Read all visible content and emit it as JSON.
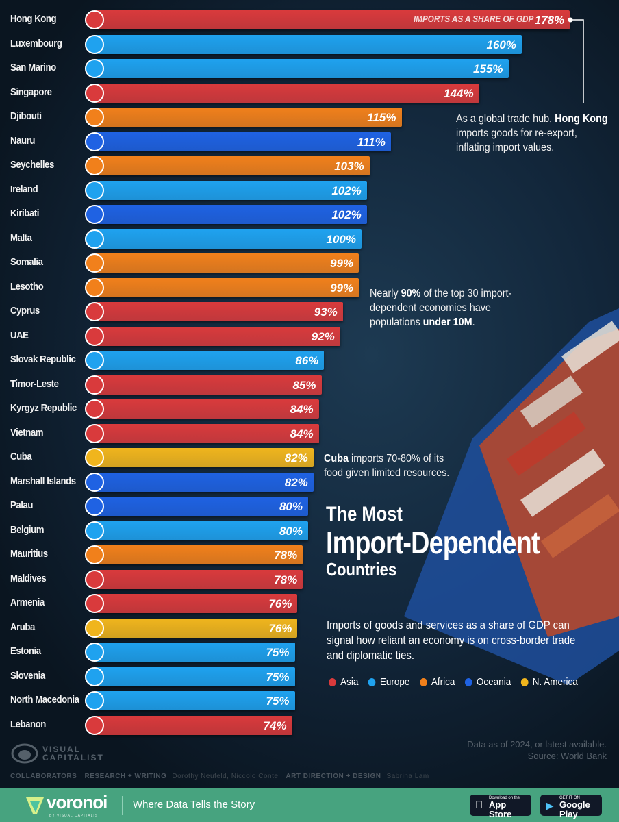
{
  "chart_data": {
    "type": "bar",
    "orientation": "horizontal",
    "title": "The Most Import-Dependent Countries",
    "subtitle": "Imports of goods and services as a share of GDP can signal how reliant an economy is on cross-border trade and diplomatic ties.",
    "value_label": "IMPORTS AS A SHARE OF GDP",
    "unit": "%",
    "legend": [
      {
        "name": "Asia",
        "color": "#d93a3c"
      },
      {
        "name": "Europe",
        "color": "#1fa2ef"
      },
      {
        "name": "Africa",
        "color": "#f1801b"
      },
      {
        "name": "Oceania",
        "color": "#1f62e3"
      },
      {
        "name": "N. America",
        "color": "#f0b51d"
      }
    ],
    "categories": [
      "Hong Kong",
      "Luxembourg",
      "San Marino",
      "Singapore",
      "Djibouti",
      "Nauru",
      "Seychelles",
      "Ireland",
      "Kiribati",
      "Malta",
      "Somalia",
      "Lesotho",
      "Cyprus",
      "UAE",
      "Slovak Republic",
      "Timor-Leste",
      "Kyrgyz Republic",
      "Vietnam",
      "Cuba",
      "Marshall Islands",
      "Palau",
      "Belgium",
      "Mauritius",
      "Maldives",
      "Armenia",
      "Aruba",
      "Estonia",
      "Slovenia",
      "North Macedonia",
      "Lebanon"
    ],
    "values": [
      178,
      160,
      155,
      144,
      115,
      111,
      103,
      102,
      102,
      100,
      99,
      99,
      93,
      92,
      86,
      85,
      84,
      84,
      82,
      82,
      80,
      80,
      78,
      78,
      76,
      76,
      75,
      75,
      75,
      74
    ],
    "regions": [
      "Asia",
      "Europe",
      "Europe",
      "Asia",
      "Africa",
      "Oceania",
      "Africa",
      "Europe",
      "Oceania",
      "Europe",
      "Africa",
      "Africa",
      "Asia",
      "Asia",
      "Europe",
      "Asia",
      "Asia",
      "Asia",
      "N. America",
      "Oceania",
      "Oceania",
      "Europe",
      "Africa",
      "Asia",
      "Asia",
      "N. America",
      "Europe",
      "Europe",
      "Europe",
      "Asia"
    ]
  },
  "title": {
    "line1": "The Most",
    "line2": "Import-Dependent",
    "line3": "Countries"
  },
  "annotations": {
    "hk": [
      "As a global trade hub, ",
      "Hong Kong",
      " imports goods for re-export, inflating import values."
    ],
    "pop": [
      "Nearly ",
      "90%",
      " of the top 30 import-dependent economies have populations ",
      "under 10M",
      "."
    ],
    "cuba": [
      "Cuba",
      " imports 70-80% of its food given limited resources."
    ]
  },
  "source": {
    "line1": "Data as of 2024, or latest available.",
    "line2": "Source: World Bank"
  },
  "brand": {
    "line1": "VISUAL",
    "line2": "CAPITALIST"
  },
  "collaborators": {
    "label": "COLLABORATORS",
    "research_label": "RESEARCH + WRITING",
    "research": "Dorothy Neufeld, Niccolo Conte",
    "design_label": "ART DIRECTION + DESIGN",
    "design": "Sabrina Lam"
  },
  "footer": {
    "logo": "voronoi",
    "logo_sub": "BY VISUAL CAPITALIST",
    "tagline": "Where Data Tells the Story",
    "appstore_small": "Download on the",
    "appstore": "App Store",
    "googleplay_small": "GET IT ON",
    "googleplay": "Google Play"
  }
}
